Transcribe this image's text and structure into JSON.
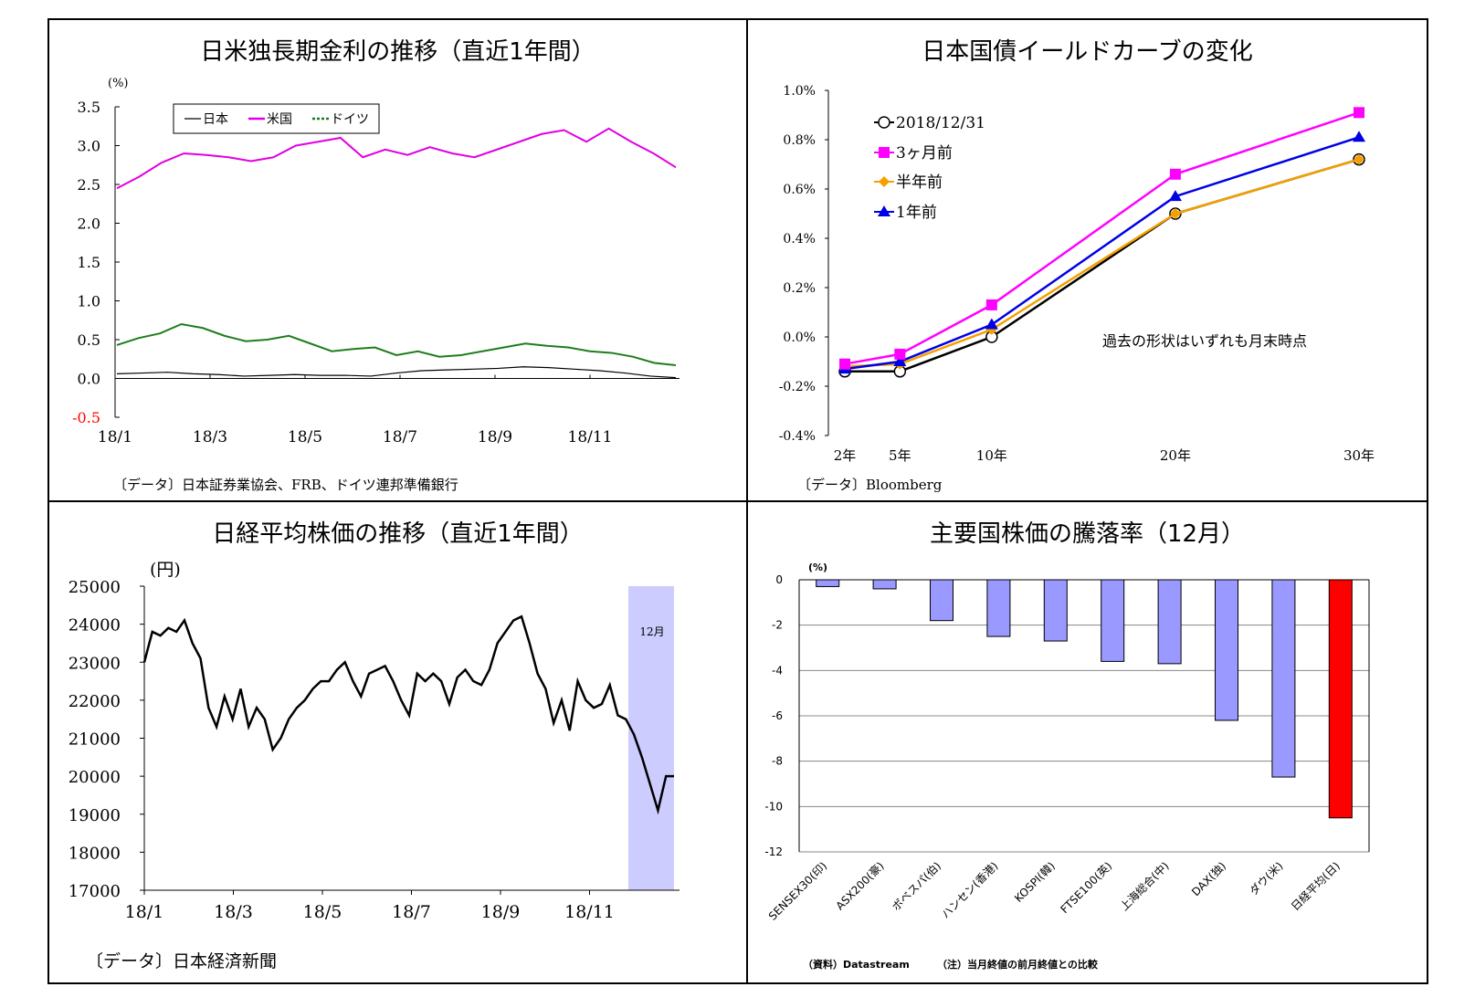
{
  "panels": {
    "top_left": {
      "title": "日米独長期金利の推移（直近1年間）",
      "source": "〔データ〕日本証券業協会、FRB、ドイツ連邦準備銀行"
    },
    "top_right": {
      "title": "日本国債イールドカーブの変化",
      "source": "〔データ〕Bloomberg",
      "annotation": "過去の形状はいずれも月末時点"
    },
    "bottom_left": {
      "title": "日経平均株価の推移（直近1年間）",
      "source": "〔データ〕日本経済新聞",
      "annotation": "12月"
    },
    "bottom_right": {
      "title": "主要国株価の騰落率（12月）",
      "source": "（資料）Datastream",
      "note": "（注）当月終値の前月終値との比較"
    }
  },
  "colors": {
    "japan": "#000000",
    "us": "#e100e1",
    "germany": "#1e7d1e",
    "yc_current": "#000000",
    "yc_3m": "#ff00ff",
    "yc_6m": "#f5a000",
    "yc_1y": "#0000e6",
    "nikkei": "#000000",
    "december_shade": "#ccccff",
    "bar_default": "#9999ff",
    "bar_highlight": "#ff0000",
    "negative_label": "#ff0000"
  },
  "chart_data": [
    {
      "id": "rates",
      "type": "line",
      "unit_label": "(%)",
      "ylim": [
        -0.5,
        3.5
      ],
      "yticks": [
        "3.5",
        "3.0",
        "2.5",
        "2.0",
        "1.5",
        "1.0",
        "0.5",
        "0.0",
        "-0.5"
      ],
      "xticks": [
        "18/1",
        "18/3",
        "18/5",
        "18/7",
        "18/9",
        "18/11"
      ],
      "legend": [
        "日本",
        "米国",
        "ドイツ"
      ],
      "series": [
        {
          "name": "日本",
          "values": [
            0.06,
            0.07,
            0.08,
            0.06,
            0.05,
            0.03,
            0.04,
            0.05,
            0.04,
            0.04,
            0.03,
            0.07,
            0.1,
            0.11,
            0.12,
            0.13,
            0.15,
            0.14,
            0.12,
            0.1,
            0.07,
            0.03,
            0.01
          ]
        },
        {
          "name": "米国",
          "values": [
            2.45,
            2.6,
            2.78,
            2.9,
            2.88,
            2.85,
            2.8,
            2.85,
            3.0,
            3.05,
            3.1,
            2.85,
            2.95,
            2.88,
            2.98,
            2.9,
            2.85,
            2.95,
            3.05,
            3.15,
            3.2,
            3.05,
            3.22,
            3.05,
            2.9,
            2.72
          ]
        },
        {
          "name": "ドイツ",
          "values": [
            0.43,
            0.52,
            0.58,
            0.7,
            0.65,
            0.55,
            0.48,
            0.5,
            0.55,
            0.45,
            0.35,
            0.38,
            0.4,
            0.3,
            0.35,
            0.28,
            0.3,
            0.35,
            0.4,
            0.45,
            0.42,
            0.4,
            0.35,
            0.33,
            0.28,
            0.2,
            0.17
          ]
        }
      ]
    },
    {
      "id": "yield_curve",
      "type": "line",
      "ylim": [
        -0.4,
        1.0
      ],
      "yticks": [
        "1.0%",
        "0.8%",
        "0.6%",
        "0.4%",
        "0.2%",
        "0.0%",
        "-0.2%",
        "-0.4%"
      ],
      "categories": [
        "2年",
        "5年",
        "10年",
        "20年",
        "30年"
      ],
      "x": [
        2,
        5,
        10,
        20,
        30
      ],
      "series": [
        {
          "name": "2018/12/31",
          "values": [
            -0.14,
            -0.14,
            0.0,
            0.5,
            0.72
          ]
        },
        {
          "name": "3ヶ月前",
          "values": [
            -0.11,
            -0.07,
            0.13,
            0.66,
            0.91
          ]
        },
        {
          "name": "半年前",
          "values": [
            -0.12,
            -0.11,
            0.03,
            0.5,
            0.72
          ]
        },
        {
          "name": "1年前",
          "values": [
            -0.13,
            -0.1,
            0.05,
            0.57,
            0.81
          ]
        }
      ]
    },
    {
      "id": "nikkei",
      "type": "line",
      "unit_label": "(円)",
      "ylim": [
        17000,
        25000
      ],
      "yticks": [
        "25000",
        "24000",
        "23000",
        "22000",
        "21000",
        "20000",
        "19000",
        "18000",
        "17000"
      ],
      "xticks": [
        "18/1",
        "18/3",
        "18/5",
        "18/7",
        "18/9",
        "18/11"
      ],
      "series": [
        {
          "name": "",
          "values": [
            23000,
            23800,
            23700,
            23900,
            23800,
            24100,
            23500,
            23100,
            21800,
            21300,
            22100,
            21500,
            22300,
            21300,
            21800,
            21500,
            20700,
            21000,
            21500,
            21800,
            22000,
            22300,
            22500,
            22500,
            22800,
            23000,
            22500,
            22100,
            22700,
            22800,
            22900,
            22500,
            22000,
            21600,
            22700,
            22500,
            22700,
            22500,
            21900,
            22600,
            22800,
            22500,
            22400,
            22800,
            23500,
            23800,
            24100,
            24200,
            23500,
            22700,
            22300,
            21400,
            22000,
            21200,
            22500,
            22000,
            21800,
            21900,
            22400,
            21600,
            21500,
            21100,
            20500,
            19800,
            19100,
            20000,
            20000
          ]
        }
      ]
    },
    {
      "id": "stock_returns",
      "type": "bar",
      "unit_label": "(%)",
      "ylim": [
        -12,
        0
      ],
      "yticks": [
        "0",
        "-2",
        "-4",
        "-6",
        "-8",
        "-10",
        "-12"
      ],
      "categories": [
        "SENSEX30(印)",
        "ASX200(豪)",
        "ボベスパ(伯)",
        "ハンセン(香港)",
        "KOSPI(韓)",
        "FTSE100(英)",
        "上海総合(中)",
        "DAX(独)",
        "ダウ(米)",
        "日経平均(日)"
      ],
      "values": [
        -0.3,
        -0.4,
        -1.8,
        -2.5,
        -2.7,
        -3.6,
        -3.7,
        -6.2,
        -8.7,
        -10.5
      ]
    }
  ]
}
